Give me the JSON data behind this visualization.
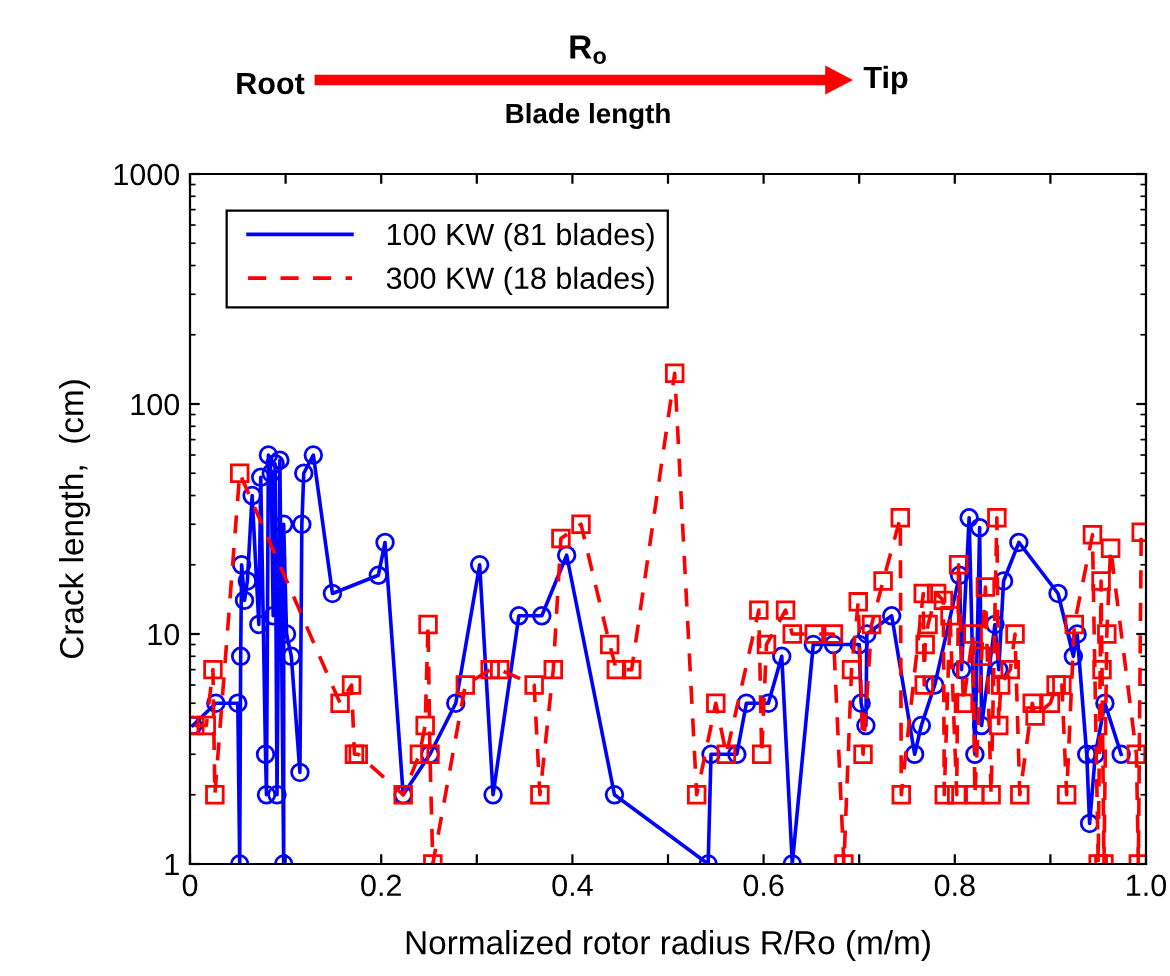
{
  "chart_data": {
    "type": "line",
    "xlabel": "Normalized rotor radius R/Ro (m/m)",
    "ylabel": "Crack length,  (cm)",
    "annotations": [
      "R$_{o}$",
      "Root",
      "Tip",
      "Blade length"
    ],
    "log": "y",
    "grid": false,
    "legend": "top left",
    "xlim": [
      0,
      1
    ],
    "ylim": [
      1,
      1000
    ],
    "xticks": [
      0,
      {
        "value": 0.1,
        "label": null
      },
      0.2,
      {
        "value": 0.3,
        "label": null
      },
      0.4,
      {
        "value": 0.5,
        "label": null
      },
      0.6,
      {
        "value": 0.7,
        "label": null
      },
      0.8,
      {
        "value": 0.9,
        "label": null
      },
      {
        "value": 1.0,
        "label": "1.0"
      }
    ],
    "yticks": [
      1,
      10,
      100,
      1000
    ],
    "series": [
      {
        "name": "100 KW (81 blades)",
        "color": "#0000ff",
        "marker": "circle",
        "line_style": "solid",
        "x": [
          0.003,
          0.027,
          0.05,
          0.052,
          0.053,
          0.054,
          0.057,
          0.06,
          0.065,
          0.072,
          0.074,
          0.079,
          0.08,
          0.082,
          0.085,
          0.087,
          0.089,
          0.091,
          0.094,
          0.098,
          0.098,
          0.101,
          0.106,
          0.115,
          0.117,
          0.119,
          0.129,
          0.149,
          0.197,
          0.204,
          0.223,
          0.251,
          0.278,
          0.303,
          0.317,
          0.344,
          0.368,
          0.394,
          0.444,
          0.542,
          0.545,
          0.572,
          0.582,
          0.605,
          0.619,
          0.63,
          0.652,
          0.673,
          0.7,
          0.702,
          0.707,
          0.708,
          0.734,
          0.758,
          0.765,
          0.779,
          0.805,
          0.807,
          0.815,
          0.821,
          0.826,
          0.828,
          0.842,
          0.846,
          0.851,
          0.867,
          0.908,
          0.924,
          0.928,
          0.938,
          0.941,
          0.947,
          0.957,
          0.974
        ],
        "values": [
          4,
          5,
          5,
          1,
          8,
          20,
          14,
          17,
          40,
          11,
          48,
          3,
          2,
          60,
          50,
          12,
          55,
          2,
          57,
          1,
          30,
          10,
          8,
          2.5,
          30,
          50,
          60,
          15,
          18,
          25,
          2,
          3,
          5,
          20,
          2,
          12,
          12,
          22,
          2,
          1,
          3,
          3,
          5,
          5,
          8,
          1,
          9,
          9,
          9,
          5,
          4,
          10,
          12,
          3,
          4,
          6,
          18,
          7,
          32,
          3,
          29,
          4,
          11,
          7,
          17,
          25,
          15,
          8,
          10,
          3,
          1.5,
          3,
          5,
          3
        ]
      },
      {
        "name": "300 KW (18 blades)",
        "color": "#ff0000",
        "marker": "square",
        "line_style": "dashed",
        "x": [
          0.005,
          0.017,
          0.024,
          0.026,
          0.052,
          0.157,
          0.169,
          0.172,
          0.176,
          0.223,
          0.24,
          0.246,
          0.249,
          0.251,
          0.254,
          0.288,
          0.314,
          0.324,
          0.36,
          0.366,
          0.38,
          0.388,
          0.409,
          0.439,
          0.446,
          0.462,
          0.507,
          0.53,
          0.55,
          0.561,
          0.595,
          0.598,
          0.603,
          0.623,
          0.63,
          0.653,
          0.673,
          0.684,
          0.692,
          0.699,
          0.704,
          0.713,
          0.725,
          0.743,
          0.744,
          0.767,
          0.768,
          0.769,
          0.772,
          0.781,
          0.788,
          0.789,
          0.795,
          0.802,
          0.804,
          0.809,
          0.819,
          0.821,
          0.828,
          0.832,
          0.838,
          0.844,
          0.846,
          0.848,
          0.858,
          0.863,
          0.868,
          0.881,
          0.884,
          0.9,
          0.906,
          0.912,
          0.917,
          0.925,
          0.944,
          0.95,
          0.953,
          0.954,
          0.956,
          0.959,
          0.963,
          0.99,
          0.992,
          0.995
        ],
        "values": [
          4,
          4,
          7,
          2,
          50,
          5,
          6,
          3,
          3,
          2,
          3,
          4,
          11,
          3,
          1,
          6,
          7,
          7,
          6,
          2,
          7,
          26,
          30,
          9,
          7,
          7,
          136,
          2,
          5,
          3,
          12.7,
          3,
          9,
          12.7,
          10,
          10,
          10,
          1,
          7,
          13.8,
          3,
          11,
          17,
          32,
          2,
          15,
          6,
          9,
          11,
          15,
          14,
          2,
          12,
          2,
          20,
          5,
          10,
          2,
          8,
          16,
          2,
          32,
          4,
          6,
          7,
          10,
          2,
          5,
          4.4,
          5,
          6,
          6,
          2,
          11,
          27,
          1,
          17,
          7,
          1,
          10,
          23.6,
          3,
          1,
          27.7
        ]
      }
    ]
  }
}
